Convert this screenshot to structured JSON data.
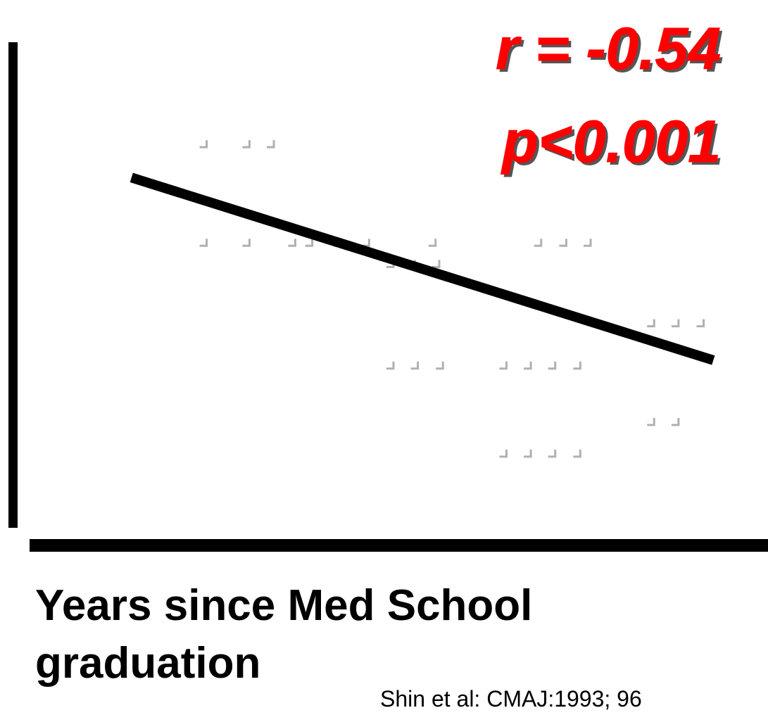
{
  "chart_data": {
    "type": "scatter",
    "x_label": "Years since Med School graduation",
    "source": "Shin et al: CMAJ:1993; 96",
    "annotations": [
      "r = -0.54",
      "p<0.001"
    ],
    "annotation_color": "#ff0000",
    "xlim": [
      0,
      100
    ],
    "ylim": [
      0,
      100
    ],
    "series": [
      {
        "color": "#b0b0b0",
        "x": [
          23.6,
          29.4,
          32.7,
          23.6,
          29.4,
          35.6,
          37.9,
          41.8,
          45.6,
          54.6,
          68.9,
          72.3,
          75.6,
          48.9,
          51.8,
          55.1,
          84.2,
          87.5,
          90.9,
          48.9,
          52.2,
          55.6,
          64.2,
          67.5,
          70.8,
          74.2,
          84.2,
          87.5,
          64.2,
          67.5,
          70.8,
          74.2
        ],
        "values": [
          79.7,
          79.7,
          79.7,
          60.1,
          60.1,
          60.1,
          60.1,
          60.1,
          60.1,
          60.1,
          60.1,
          60.1,
          60.1,
          55.9,
          55.9,
          55.9,
          44.1,
          44.1,
          44.1,
          35.7,
          35.7,
          35.7,
          35.7,
          35.7,
          35.7,
          35.7,
          24.5,
          24.5,
          18.2,
          18.2,
          18.2,
          18.2
        ]
      }
    ],
    "trend_line": {
      "x": [
        13.8,
        92.6
      ],
      "values": [
        73.1,
        36.8
      ],
      "color": "#000000"
    }
  }
}
